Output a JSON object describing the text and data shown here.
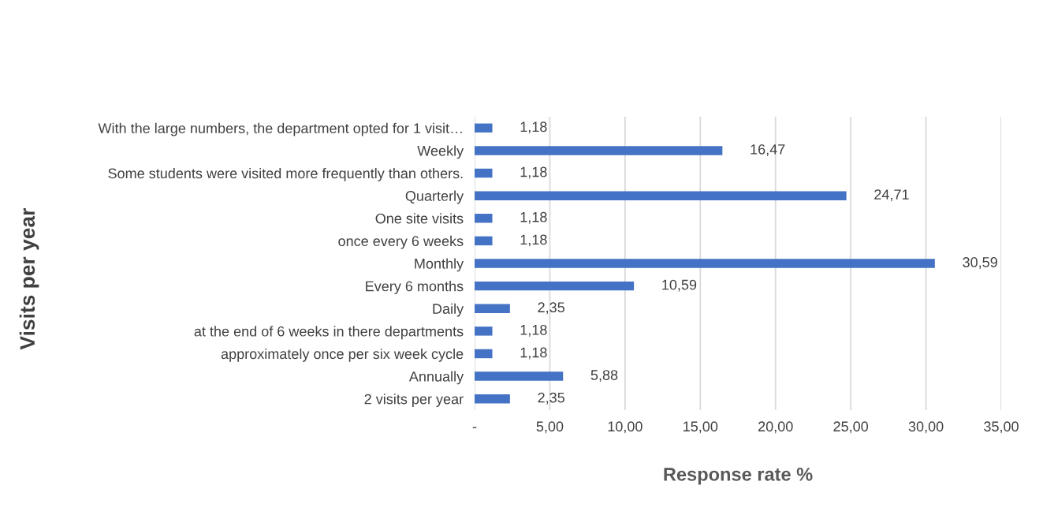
{
  "chart_data": {
    "type": "bar",
    "orientation": "horizontal",
    "xlabel": "Response rate %",
    "ylabel": "Visits per year",
    "categories": [
      "With the large numbers, the department opted for 1 visit…",
      "Weekly",
      "Some students were visited more frequently than others.",
      "Quarterly",
      "One site visits",
      "once every 6 weeks",
      "Monthly",
      "Every 6 months",
      "Daily",
      "at the end of 6 weeks in there departments",
      "approximately once per six week cycle",
      "Annually",
      "2 visits per year"
    ],
    "values": [
      1.18,
      16.47,
      1.18,
      24.71,
      1.18,
      1.18,
      30.59,
      10.59,
      2.35,
      1.18,
      1.18,
      5.88,
      2.35
    ],
    "value_labels": [
      "1,18",
      "16,47",
      "1,18",
      "24,71",
      "1,18",
      "1,18",
      "30,59",
      "10,59",
      "2,35",
      "1,18",
      "1,18",
      "5,88",
      "2,35"
    ],
    "color": "#4472c4",
    "xlim": [
      0,
      35
    ],
    "xticks": [
      {
        "value": 0,
        "label": "-"
      },
      {
        "value": 5,
        "label": "5,00"
      },
      {
        "value": 10,
        "label": "10,00"
      },
      {
        "value": 15,
        "label": "15,00"
      },
      {
        "value": 20,
        "label": "20,00"
      },
      {
        "value": 25,
        "label": "25,00"
      },
      {
        "value": 30,
        "label": "30,00"
      },
      {
        "value": 35,
        "label": "35,00"
      }
    ],
    "grid": "x",
    "legend": false
  }
}
